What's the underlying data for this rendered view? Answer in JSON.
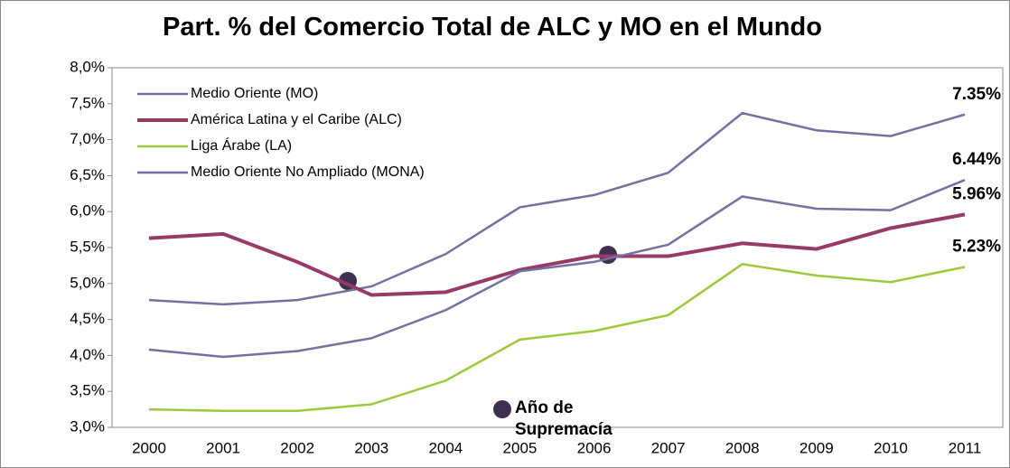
{
  "chart_data": {
    "type": "line",
    "title": "Part. % del Comercio Total de ALC y MO en el Mundo",
    "annotation": "Año de Supremacía",
    "categories": [
      "2000",
      "2001",
      "2002",
      "2003",
      "2004",
      "2005",
      "2006",
      "2007",
      "2008",
      "2009",
      "2010",
      "2011"
    ],
    "ylim": [
      3.0,
      8.0
    ],
    "yticks": [
      {
        "value": 3.0,
        "label": "3,0%"
      },
      {
        "value": 3.5,
        "label": "3,5%"
      },
      {
        "value": 4.0,
        "label": "4,0%"
      },
      {
        "value": 4.5,
        "label": "4,5%"
      },
      {
        "value": 5.0,
        "label": "5,0%"
      },
      {
        "value": 5.5,
        "label": "5,5%"
      },
      {
        "value": 6.0,
        "label": "6,0%"
      },
      {
        "value": 6.5,
        "label": "6,5%"
      },
      {
        "value": 7.0,
        "label": "7,0%"
      },
      {
        "value": 7.5,
        "label": "7,5%"
      },
      {
        "value": 8.0,
        "label": "8,0%"
      }
    ],
    "grid": false,
    "legend": "top-left",
    "series": [
      {
        "name": "Medio Oriente (MO)",
        "color": "#7471a2",
        "width": 2.5,
        "values": [
          4.77,
          4.71,
          4.77,
          4.96,
          5.41,
          6.06,
          6.23,
          6.54,
          7.37,
          7.13,
          7.05,
          7.35
        ],
        "value_labels": [
          null,
          null,
          null,
          null,
          null,
          null,
          null,
          null,
          null,
          null,
          null,
          "7.35%"
        ]
      },
      {
        "name": "América Latina y el Caribe (ALC)",
        "color": "#973a65",
        "width": 4,
        "values": [
          5.63,
          5.69,
          5.3,
          4.84,
          4.88,
          5.19,
          5.38,
          5.38,
          5.56,
          5.48,
          5.77,
          5.96
        ],
        "value_labels": [
          null,
          null,
          null,
          null,
          null,
          null,
          null,
          null,
          null,
          null,
          null,
          "5.96%"
        ]
      },
      {
        "name": "Liga Árabe (LA)",
        "color": "#9cc93a",
        "width": 2.5,
        "values": [
          3.25,
          3.23,
          3.23,
          3.32,
          3.65,
          4.22,
          4.34,
          4.56,
          5.27,
          5.11,
          5.02,
          5.23
        ],
        "value_labels": [
          null,
          null,
          null,
          null,
          null,
          null,
          null,
          null,
          null,
          null,
          null,
          "5.23%"
        ]
      },
      {
        "name": "Medio Oriente No Ampliado (MONA)",
        "color": "#7471a2",
        "width": 2.5,
        "values": [
          4.08,
          3.98,
          4.06,
          4.24,
          4.63,
          5.17,
          5.3,
          5.54,
          6.21,
          6.04,
          6.02,
          6.44
        ],
        "value_labels": [
          null,
          null,
          null,
          null,
          null,
          null,
          null,
          null,
          null,
          null,
          null,
          "6.44%"
        ]
      }
    ]
  }
}
